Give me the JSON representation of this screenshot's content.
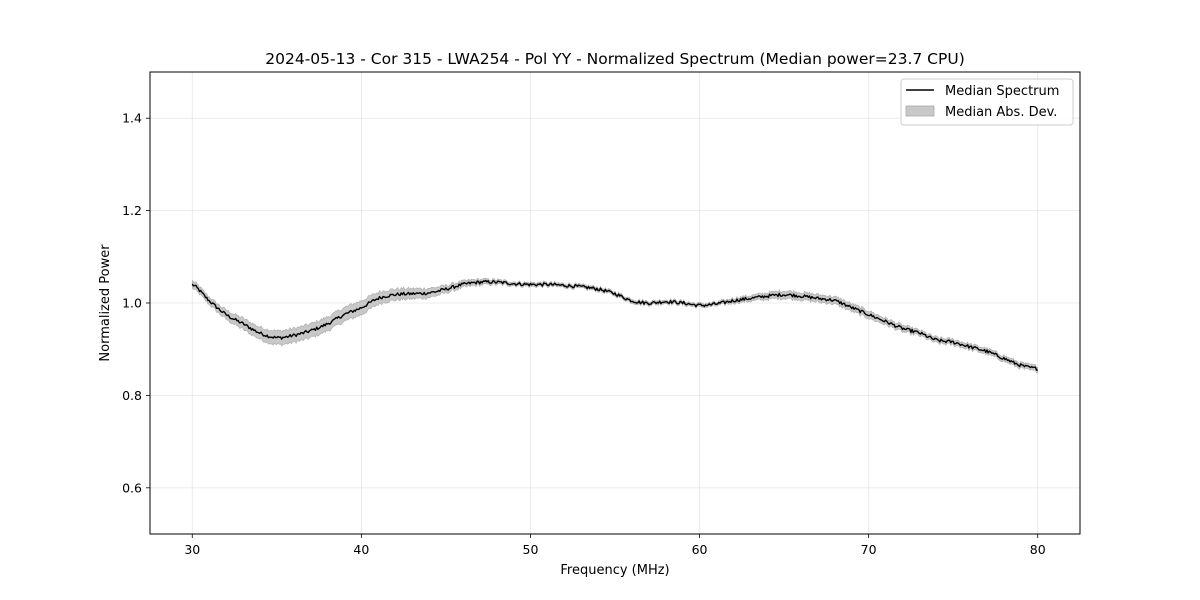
{
  "chart_data": {
    "type": "line",
    "title": "2024-05-13 - Cor 315 - LWA254 - Pol YY - Normalized Spectrum (Median power=23.7 CPU)",
    "xlabel": "Frequency (MHz)",
    "ylabel": "Normalized Power",
    "xlim": [
      27.5,
      82.5
    ],
    "ylim": [
      0.5,
      1.5
    ],
    "xticks": [
      30,
      40,
      50,
      60,
      70,
      80
    ],
    "yticks": [
      0.6,
      0.8,
      1.0,
      1.2,
      1.4
    ],
    "xtick_labels": [
      "30",
      "40",
      "50",
      "60",
      "70",
      "80"
    ],
    "ytick_labels": [
      "0.6",
      "0.8",
      "1.0",
      "1.2",
      "1.4"
    ],
    "grid": true,
    "legend_position": "top-right",
    "legend": [
      "Median Spectrum",
      "Median Abs. Dev."
    ],
    "series": [
      {
        "name": "Median Spectrum",
        "color": "#000000",
        "x": [
          30,
          31,
          32,
          33,
          34,
          35,
          36,
          37,
          38,
          39,
          40,
          41,
          42,
          43,
          44,
          45,
          46,
          47,
          48,
          49,
          50,
          51,
          52,
          53,
          54,
          55,
          56,
          57,
          58,
          59,
          60,
          61,
          62,
          63,
          64,
          65,
          66,
          67,
          68,
          69,
          70,
          71,
          72,
          73,
          74,
          75,
          76,
          77,
          78,
          79,
          80
        ],
        "values": [
          1.04,
          1.005,
          0.975,
          0.955,
          0.935,
          0.925,
          0.93,
          0.94,
          0.955,
          0.975,
          0.99,
          1.01,
          1.018,
          1.02,
          1.022,
          1.03,
          1.04,
          1.045,
          1.045,
          1.042,
          1.04,
          1.04,
          1.038,
          1.035,
          1.03,
          1.02,
          1.005,
          1.0,
          1.003,
          1.0,
          0.995,
          0.998,
          1.005,
          1.01,
          1.015,
          1.018,
          1.015,
          1.01,
          1.005,
          0.99,
          0.975,
          0.96,
          0.945,
          0.935,
          0.92,
          0.915,
          0.905,
          0.895,
          0.88,
          0.865,
          0.858
        ]
      },
      {
        "name": "Median Abs. Dev.",
        "color": "#c8c8c8",
        "x": [
          30,
          31,
          32,
          33,
          34,
          35,
          36,
          37,
          38,
          39,
          40,
          41,
          42,
          43,
          44,
          45,
          46,
          47,
          48,
          49,
          50,
          51,
          52,
          53,
          54,
          55,
          56,
          57,
          58,
          59,
          60,
          61,
          62,
          63,
          64,
          65,
          66,
          67,
          68,
          69,
          70,
          71,
          72,
          73,
          74,
          75,
          76,
          77,
          78,
          79,
          80
        ],
        "values": [
          0.008,
          0.008,
          0.01,
          0.012,
          0.013,
          0.015,
          0.015,
          0.015,
          0.015,
          0.015,
          0.015,
          0.013,
          0.012,
          0.011,
          0.01,
          0.008,
          0.007,
          0.006,
          0.005,
          0.004,
          0.004,
          0.004,
          0.004,
          0.004,
          0.004,
          0.004,
          0.004,
          0.004,
          0.004,
          0.004,
          0.004,
          0.004,
          0.005,
          0.006,
          0.007,
          0.008,
          0.008,
          0.008,
          0.008,
          0.008,
          0.008,
          0.007,
          0.007,
          0.006,
          0.006,
          0.006,
          0.006,
          0.006,
          0.006,
          0.006,
          0.006
        ]
      }
    ]
  }
}
